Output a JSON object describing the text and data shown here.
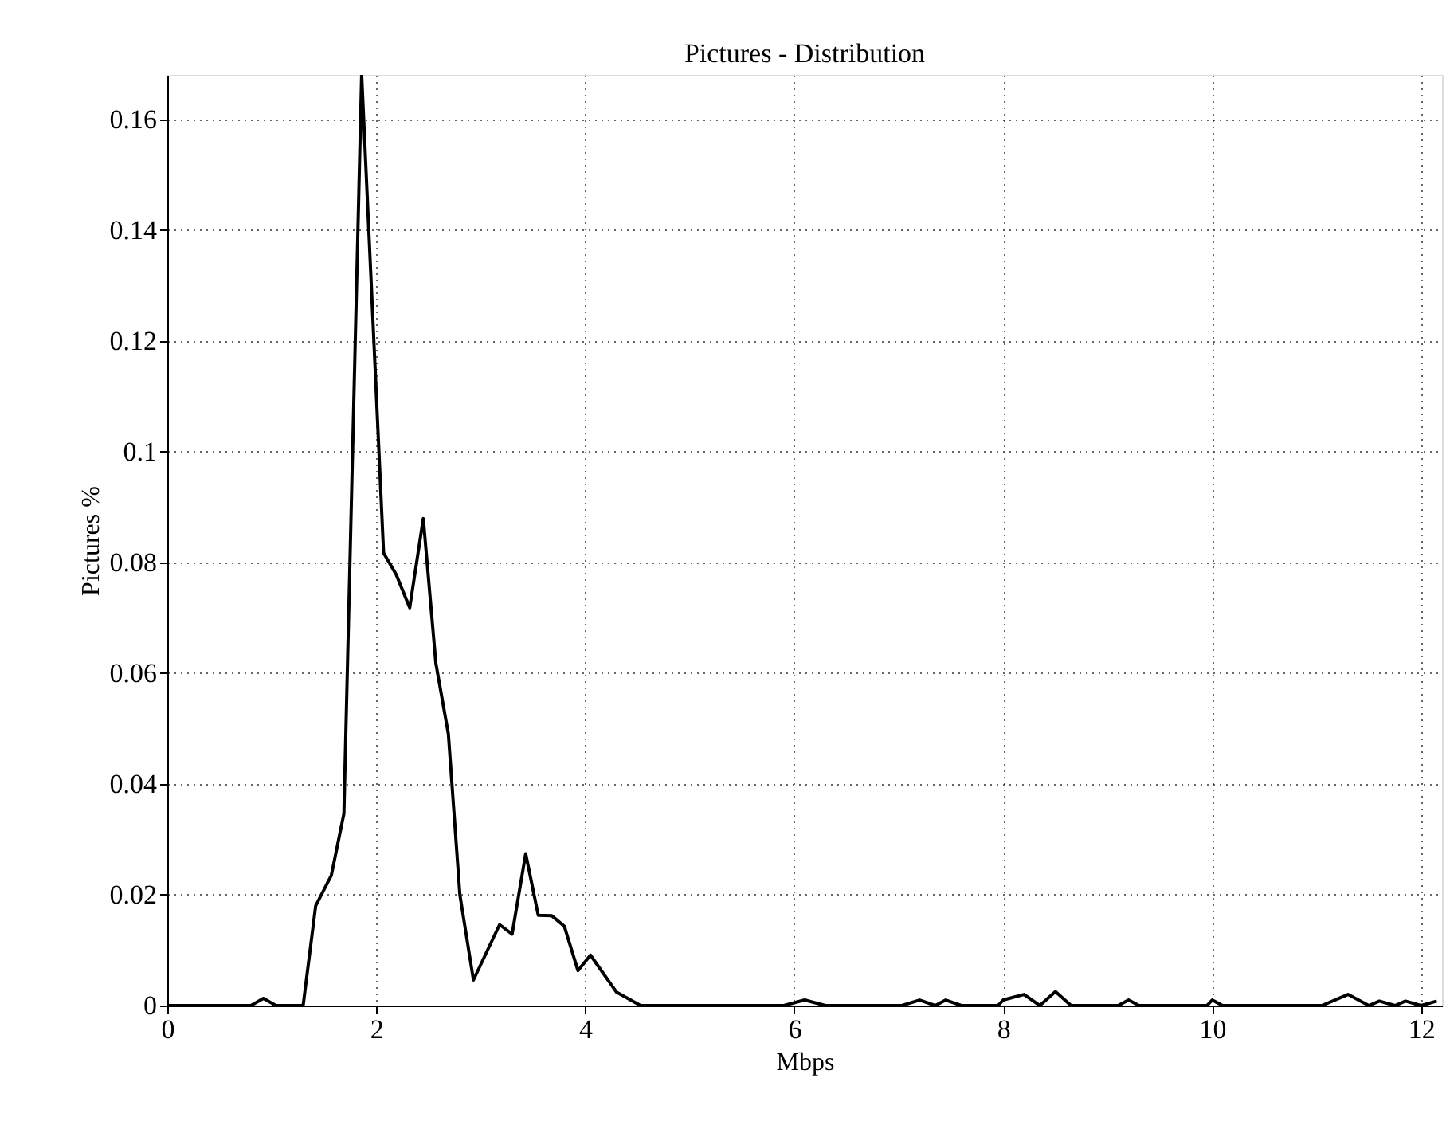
{
  "chart_data": {
    "type": "line",
    "title": "Pictures - Distribution",
    "xlabel": "Mbps",
    "ylabel": "Pictures %",
    "xlim": [
      0,
      12.2
    ],
    "ylim": [
      0,
      0.168
    ],
    "xticks": [
      0,
      2,
      4,
      6,
      8,
      10,
      12
    ],
    "yticks": [
      0,
      0.02,
      0.04,
      0.06,
      0.08,
      0.1,
      0.12,
      0.14,
      0.16
    ],
    "grid": true,
    "line_style": "solid",
    "x": [
      0,
      0.8,
      0.92,
      1.04,
      1.3,
      1.42,
      1.57,
      1.69,
      1.86,
      2.07,
      2.19,
      2.32,
      2.45,
      2.57,
      2.69,
      2.8,
      2.93,
      3.18,
      3.3,
      3.43,
      3.55,
      3.68,
      3.8,
      3.93,
      4.05,
      4.3,
      4.53,
      5.9,
      6.1,
      6.3,
      7.03,
      7.2,
      7.35,
      7.45,
      7.6,
      7.95,
      8.0,
      8.2,
      8.35,
      8.5,
      8.65,
      9.1,
      9.2,
      9.3,
      9.95,
      10.0,
      10.1,
      11.05,
      11.3,
      11.5,
      11.6,
      11.75,
      11.85,
      12.0,
      12.15
    ],
    "series": [
      {
        "color": "#000000",
        "values": [
          0,
          0,
          0.0013,
          0,
          0,
          0.018,
          0.0235,
          0.0346,
          0.168,
          0.0817,
          0.0778,
          0.0718,
          0.0879,
          0.0618,
          0.049,
          0.02,
          0.0046,
          0.0146,
          0.0129,
          0.0274,
          0.0163,
          0.0162,
          0.0143,
          0.0063,
          0.0091,
          0.0024,
          0,
          0,
          0.001,
          0,
          0,
          0.001,
          0,
          0.001,
          0,
          0,
          0.001,
          0.002,
          0,
          0.0025,
          0,
          0,
          0.001,
          0,
          0,
          0.001,
          0,
          0,
          0.002,
          0,
          0.0008,
          0,
          0.0008,
          0,
          0.0008
        ]
      }
    ]
  }
}
